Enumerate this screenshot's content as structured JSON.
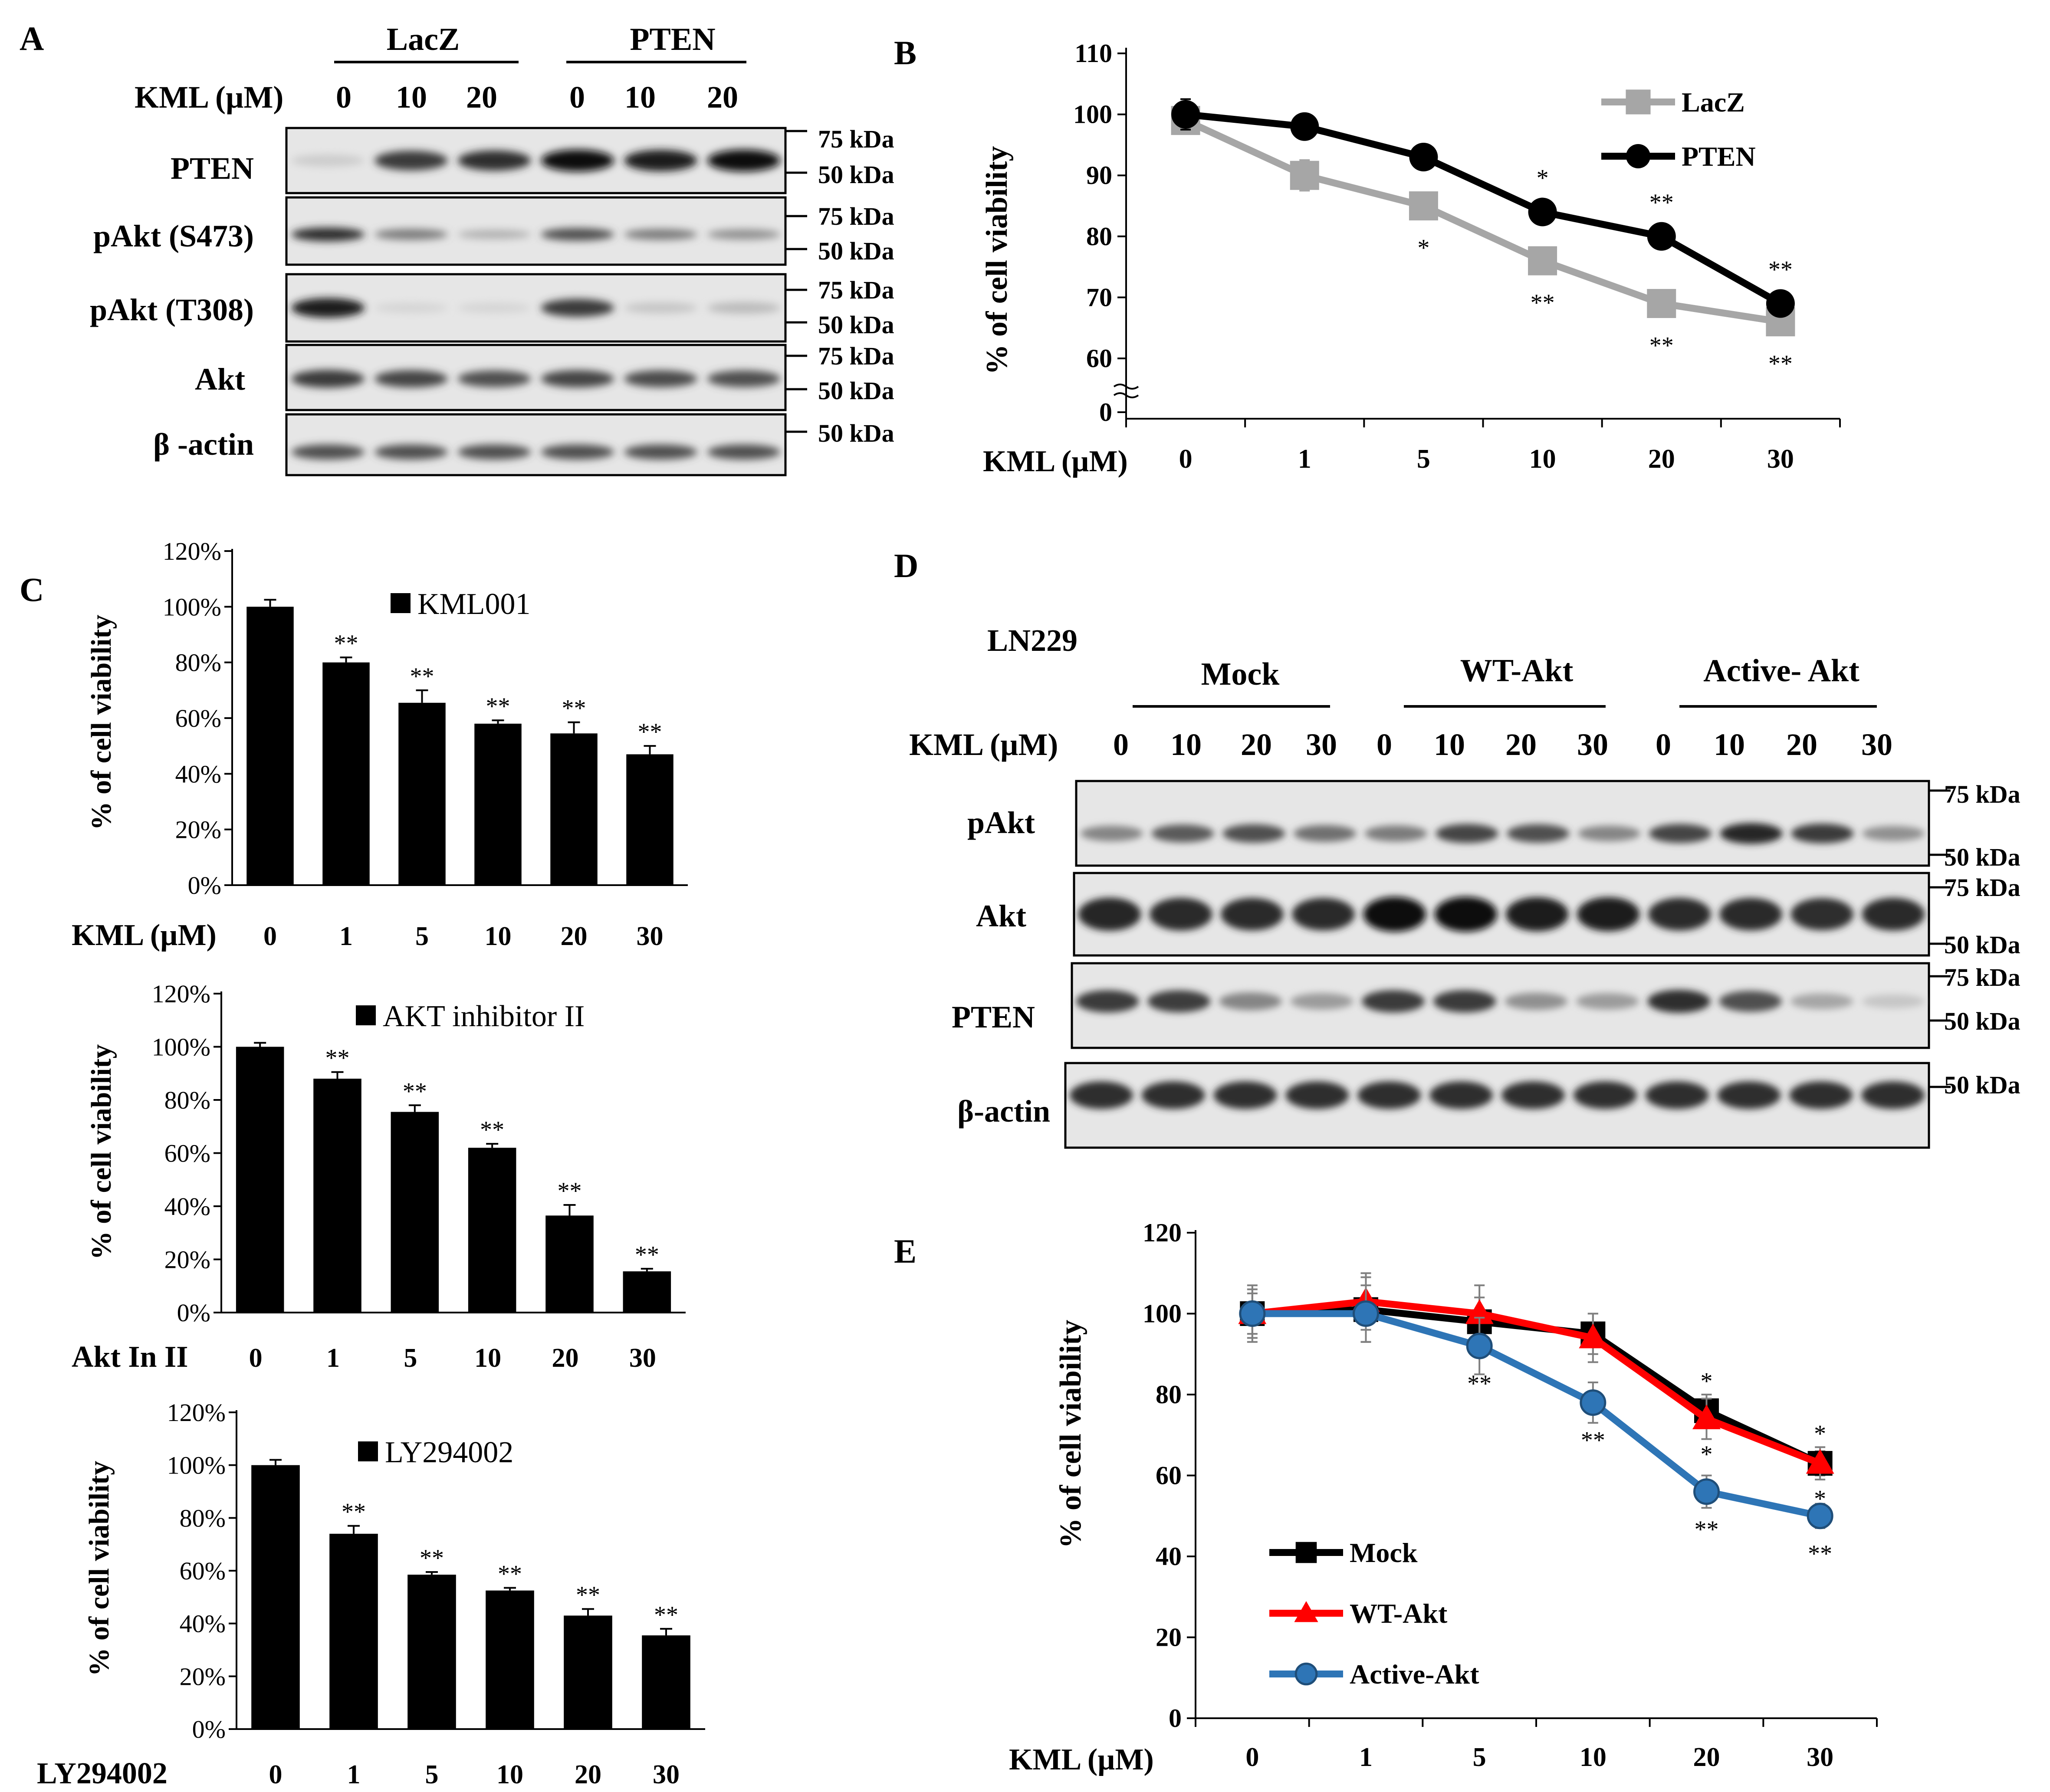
{
  "panel_letters": [
    "A",
    "B",
    "C",
    "D",
    "E"
  ],
  "blotA": {
    "groups": [
      "LacZ",
      "PTEN"
    ],
    "treatment_label": "KML (µM)",
    "lanes": [
      "0",
      "10",
      "20",
      "0",
      "10",
      "20"
    ],
    "rows": [
      {
        "label": "PTEN",
        "markers": [
          "75 kDa",
          "50 kDa"
        ],
        "band_intensity": [
          0.12,
          0.8,
          0.85,
          1.0,
          0.95,
          1.0
        ]
      },
      {
        "label": "pAkt (S473)",
        "markers": [
          "75 kDa",
          "50 kDa"
        ],
        "band_intensity": [
          0.85,
          0.5,
          0.25,
          0.7,
          0.5,
          0.4
        ]
      },
      {
        "label": "pAkt (T308)",
        "markers": [
          "75 kDa",
          "50 kDa"
        ],
        "band_intensity": [
          0.95,
          0.08,
          0.08,
          0.8,
          0.15,
          0.2
        ]
      },
      {
        "label": "Akt",
        "markers": [
          "75 kDa",
          "50 kDa"
        ],
        "band_intensity": [
          0.8,
          0.75,
          0.7,
          0.75,
          0.72,
          0.7
        ]
      },
      {
        "label": "β -actin",
        "markers": [
          "50 kDa"
        ],
        "band_intensity": [
          0.7,
          0.7,
          0.7,
          0.7,
          0.7,
          0.7
        ]
      }
    ]
  },
  "blotD": {
    "cell_line": "LN229",
    "groups": [
      "Mock",
      "WT-Akt",
      "Active- Akt"
    ],
    "treatment_label": "KML (µM)",
    "lanes": [
      "0",
      "10",
      "20",
      "30",
      "0",
      "10",
      "20",
      "30",
      "0",
      "10",
      "20",
      "30"
    ],
    "rows": [
      {
        "label": "pAkt",
        "markers": [
          "75 kDa",
          "50 kDa"
        ],
        "band_intensity": [
          0.45,
          0.65,
          0.7,
          0.55,
          0.5,
          0.75,
          0.7,
          0.45,
          0.75,
          0.9,
          0.8,
          0.4
        ]
      },
      {
        "label": "Akt",
        "markers": [
          "75 kDa",
          "50 kDa"
        ],
        "band_intensity": [
          0.9,
          0.88,
          0.87,
          0.87,
          1.0,
          1.0,
          0.95,
          0.95,
          0.88,
          0.87,
          0.85,
          0.88
        ]
      },
      {
        "label": "PTEN",
        "markers": [
          "75 kDa",
          "50 kDa"
        ],
        "band_intensity": [
          0.8,
          0.78,
          0.45,
          0.35,
          0.8,
          0.8,
          0.4,
          0.35,
          0.85,
          0.7,
          0.3,
          0.15
        ]
      },
      {
        "label": "β-actin",
        "markers": [
          "50 kDa"
        ],
        "band_intensity": [
          0.85,
          0.85,
          0.85,
          0.85,
          0.85,
          0.85,
          0.85,
          0.85,
          0.85,
          0.85,
          0.85,
          0.85
        ]
      }
    ]
  },
  "chart_data": [
    {
      "panel": "B",
      "type": "line",
      "categories": [
        "0",
        "1",
        "5",
        "10",
        "20",
        "30"
      ],
      "x_title": "KML (µM)",
      "ylabel": "% of cell viability",
      "yticks": [
        "0",
        "60",
        "70",
        "80",
        "90",
        "100",
        "110"
      ],
      "ylim": [
        60,
        110
      ],
      "axis_break": true,
      "legend_position": "top-right",
      "series": [
        {
          "name": "LacZ",
          "color": "#a6a6a6",
          "marker": "square",
          "values": [
            99,
            90,
            85,
            76,
            69,
            66
          ],
          "errors": [
            1.5,
            2.5,
            2,
            1.5,
            1.5,
            1.5
          ],
          "sig": [
            "",
            "",
            "*",
            "**",
            "**",
            "**"
          ]
        },
        {
          "name": "PTEN",
          "color": "#000000",
          "marker": "circle",
          "values": [
            100,
            98,
            93,
            84,
            80,
            69
          ],
          "errors": [
            2.5,
            0.5,
            0.5,
            0.5,
            0.5,
            0.5
          ],
          "sig": [
            "",
            "",
            "",
            "*",
            "**",
            "**"
          ]
        }
      ]
    },
    {
      "panel": "C1",
      "type": "bar",
      "categories": [
        "0",
        "1",
        "5",
        "10",
        "20",
        "30"
      ],
      "x_title": "KML (µM)",
      "ylabel": "% of cell viability",
      "yticks": [
        "0%",
        "20%",
        "40%",
        "60%",
        "80%",
        "100%",
        "120%"
      ],
      "ylim": [
        0,
        120
      ],
      "legend_position": "top-right",
      "series": [
        {
          "name": "KML001",
          "color": "#000000",
          "values": [
            100,
            80,
            65.5,
            58,
            54.5,
            47
          ],
          "errors": [
            2.5,
            1.8,
            4.5,
            1.2,
            4,
            3
          ],
          "sig": [
            "",
            "**",
            "**",
            "**",
            "**",
            "**"
          ]
        }
      ]
    },
    {
      "panel": "C2",
      "type": "bar",
      "categories": [
        "0",
        "1",
        "5",
        "10",
        "20",
        "30"
      ],
      "x_title": "Akt In II",
      "ylabel": "% of cell viability",
      "yticks": [
        "0%",
        "20%",
        "40%",
        "60%",
        "80%",
        "100%",
        "120%"
      ],
      "ylim": [
        0,
        120
      ],
      "legend_position": "top-right",
      "series": [
        {
          "name": "AKT inhibitor II",
          "color": "#000000",
          "values": [
            100,
            88,
            75.5,
            62,
            36.5,
            15.5
          ],
          "errors": [
            1.5,
            2.5,
            2.5,
            1.5,
            4,
            1
          ],
          "sig": [
            "",
            "**",
            "**",
            "**",
            "**",
            "**"
          ]
        }
      ]
    },
    {
      "panel": "C3",
      "type": "bar",
      "categories": [
        "0",
        "1",
        "5",
        "10",
        "20",
        "30"
      ],
      "x_title": "LY294002",
      "ylabel": "% of cell viability",
      "yticks": [
        "0%",
        "20%",
        "40%",
        "60%",
        "80%",
        "100%",
        "120%"
      ],
      "ylim": [
        0,
        120
      ],
      "legend_position": "top-right",
      "series": [
        {
          "name": "LY294002",
          "color": "#000000",
          "values": [
            100,
            74,
            58.5,
            52.5,
            43,
            35.5
          ],
          "errors": [
            2,
            3,
            1,
            1,
            2.5,
            2.5
          ],
          "sig": [
            "",
            "**",
            "**",
            "**",
            "**",
            "**"
          ]
        }
      ]
    },
    {
      "panel": "E",
      "type": "line",
      "categories": [
        "0",
        "1",
        "5",
        "10",
        "20",
        "30"
      ],
      "x_title": "KML (µM)",
      "ylabel": "% of cell viability",
      "yticks": [
        "0",
        "20",
        "40",
        "60",
        "80",
        "100",
        "120"
      ],
      "ylim": [
        0,
        120
      ],
      "legend_position": "bottom-left",
      "series": [
        {
          "name": "Mock",
          "color": "#000000",
          "marker": "square",
          "values": [
            100,
            101,
            98,
            95,
            76,
            63
          ],
          "errors": [
            6,
            8,
            6,
            5,
            4,
            3
          ],
          "sig": [
            "",
            "",
            "",
            "",
            "*",
            "*"
          ]
        },
        {
          "name": "WT-Akt",
          "color": "#ff0000",
          "marker": "triangle",
          "values": [
            100,
            103,
            100,
            94,
            74,
            63
          ],
          "errors": [
            5,
            7,
            7,
            6,
            5,
            4
          ],
          "sig": [
            "",
            "",
            "",
            "",
            "*",
            "*"
          ]
        },
        {
          "name": "Active-Akt",
          "color": "#2e75b6",
          "marker": "circle",
          "values": [
            100,
            100,
            92,
            78,
            56,
            50
          ],
          "errors": [
            7,
            7,
            7,
            5,
            4,
            3
          ],
          "sig": [
            "",
            "",
            "**",
            "**",
            "**",
            "**"
          ]
        }
      ]
    }
  ]
}
